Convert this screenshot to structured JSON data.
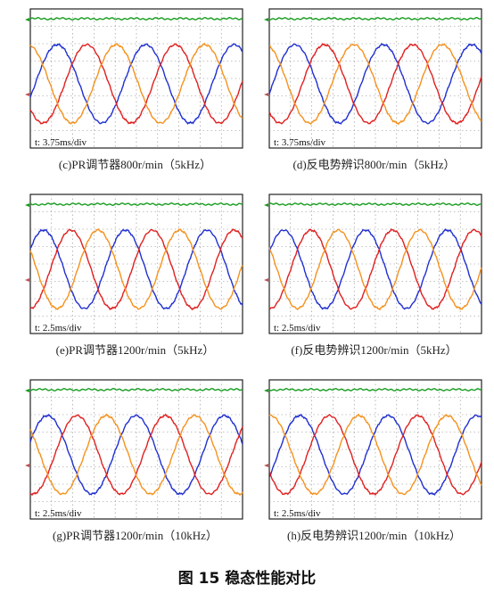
{
  "figure": {
    "title": "图 15 稳态性能对比"
  },
  "chart_data": [
    {
      "type": "line",
      "caption": "(c)PR调节器800r/min（5kHz）",
      "timebase": "t: 3.75ms/div",
      "periods": 2.4,
      "phase": -0.35,
      "series": [
        {
          "color": "#2030d0"
        },
        {
          "color": "#e02020"
        },
        {
          "color": "#f5921e"
        },
        {
          "color": "#169c1e"
        }
      ]
    },
    {
      "type": "line",
      "caption": "(d)反电势辨识800r/min（5kHz）",
      "timebase": "t: 3.75ms/div",
      "periods": 2.4,
      "phase": -0.25,
      "series": [
        {
          "color": "#2030d0"
        },
        {
          "color": "#e02020"
        },
        {
          "color": "#f5921e"
        },
        {
          "color": "#169c1e"
        }
      ]
    },
    {
      "type": "line",
      "caption": "(e)PR调节器1200r/min（5kHz）",
      "timebase": "t: 2.5ms/div",
      "periods": 2.6,
      "phase": 0.55,
      "series": [
        {
          "color": "#2030d0"
        },
        {
          "color": "#e02020"
        },
        {
          "color": "#f5921e"
        },
        {
          "color": "#169c1e"
        }
      ]
    },
    {
      "type": "line",
      "caption": "(f)反电势辨识1200r/min（5kHz）",
      "timebase": "t: 2.5ms/div",
      "periods": 2.6,
      "phase": 0.45,
      "series": [
        {
          "color": "#2030d0"
        },
        {
          "color": "#e02020"
        },
        {
          "color": "#f5921e"
        },
        {
          "color": "#169c1e"
        }
      ]
    },
    {
      "type": "line",
      "caption": "(g)PR调节器1200r/min（10kHz）",
      "timebase": "t: 2.5ms/div",
      "periods": 2.4,
      "phase": 0.35,
      "series": [
        {
          "color": "#2030d0"
        },
        {
          "color": "#e02020"
        },
        {
          "color": "#f5921e"
        },
        {
          "color": "#169c1e"
        }
      ]
    },
    {
      "type": "line",
      "caption": "(h)反电势辨识1200r/min（10kHz）",
      "timebase": "t: 2.5ms/div",
      "periods": 2.4,
      "phase": -0.6,
      "series": [
        {
          "color": "#2030d0"
        },
        {
          "color": "#e02020"
        },
        {
          "color": "#f5921e"
        },
        {
          "color": "#169c1e"
        }
      ]
    }
  ]
}
